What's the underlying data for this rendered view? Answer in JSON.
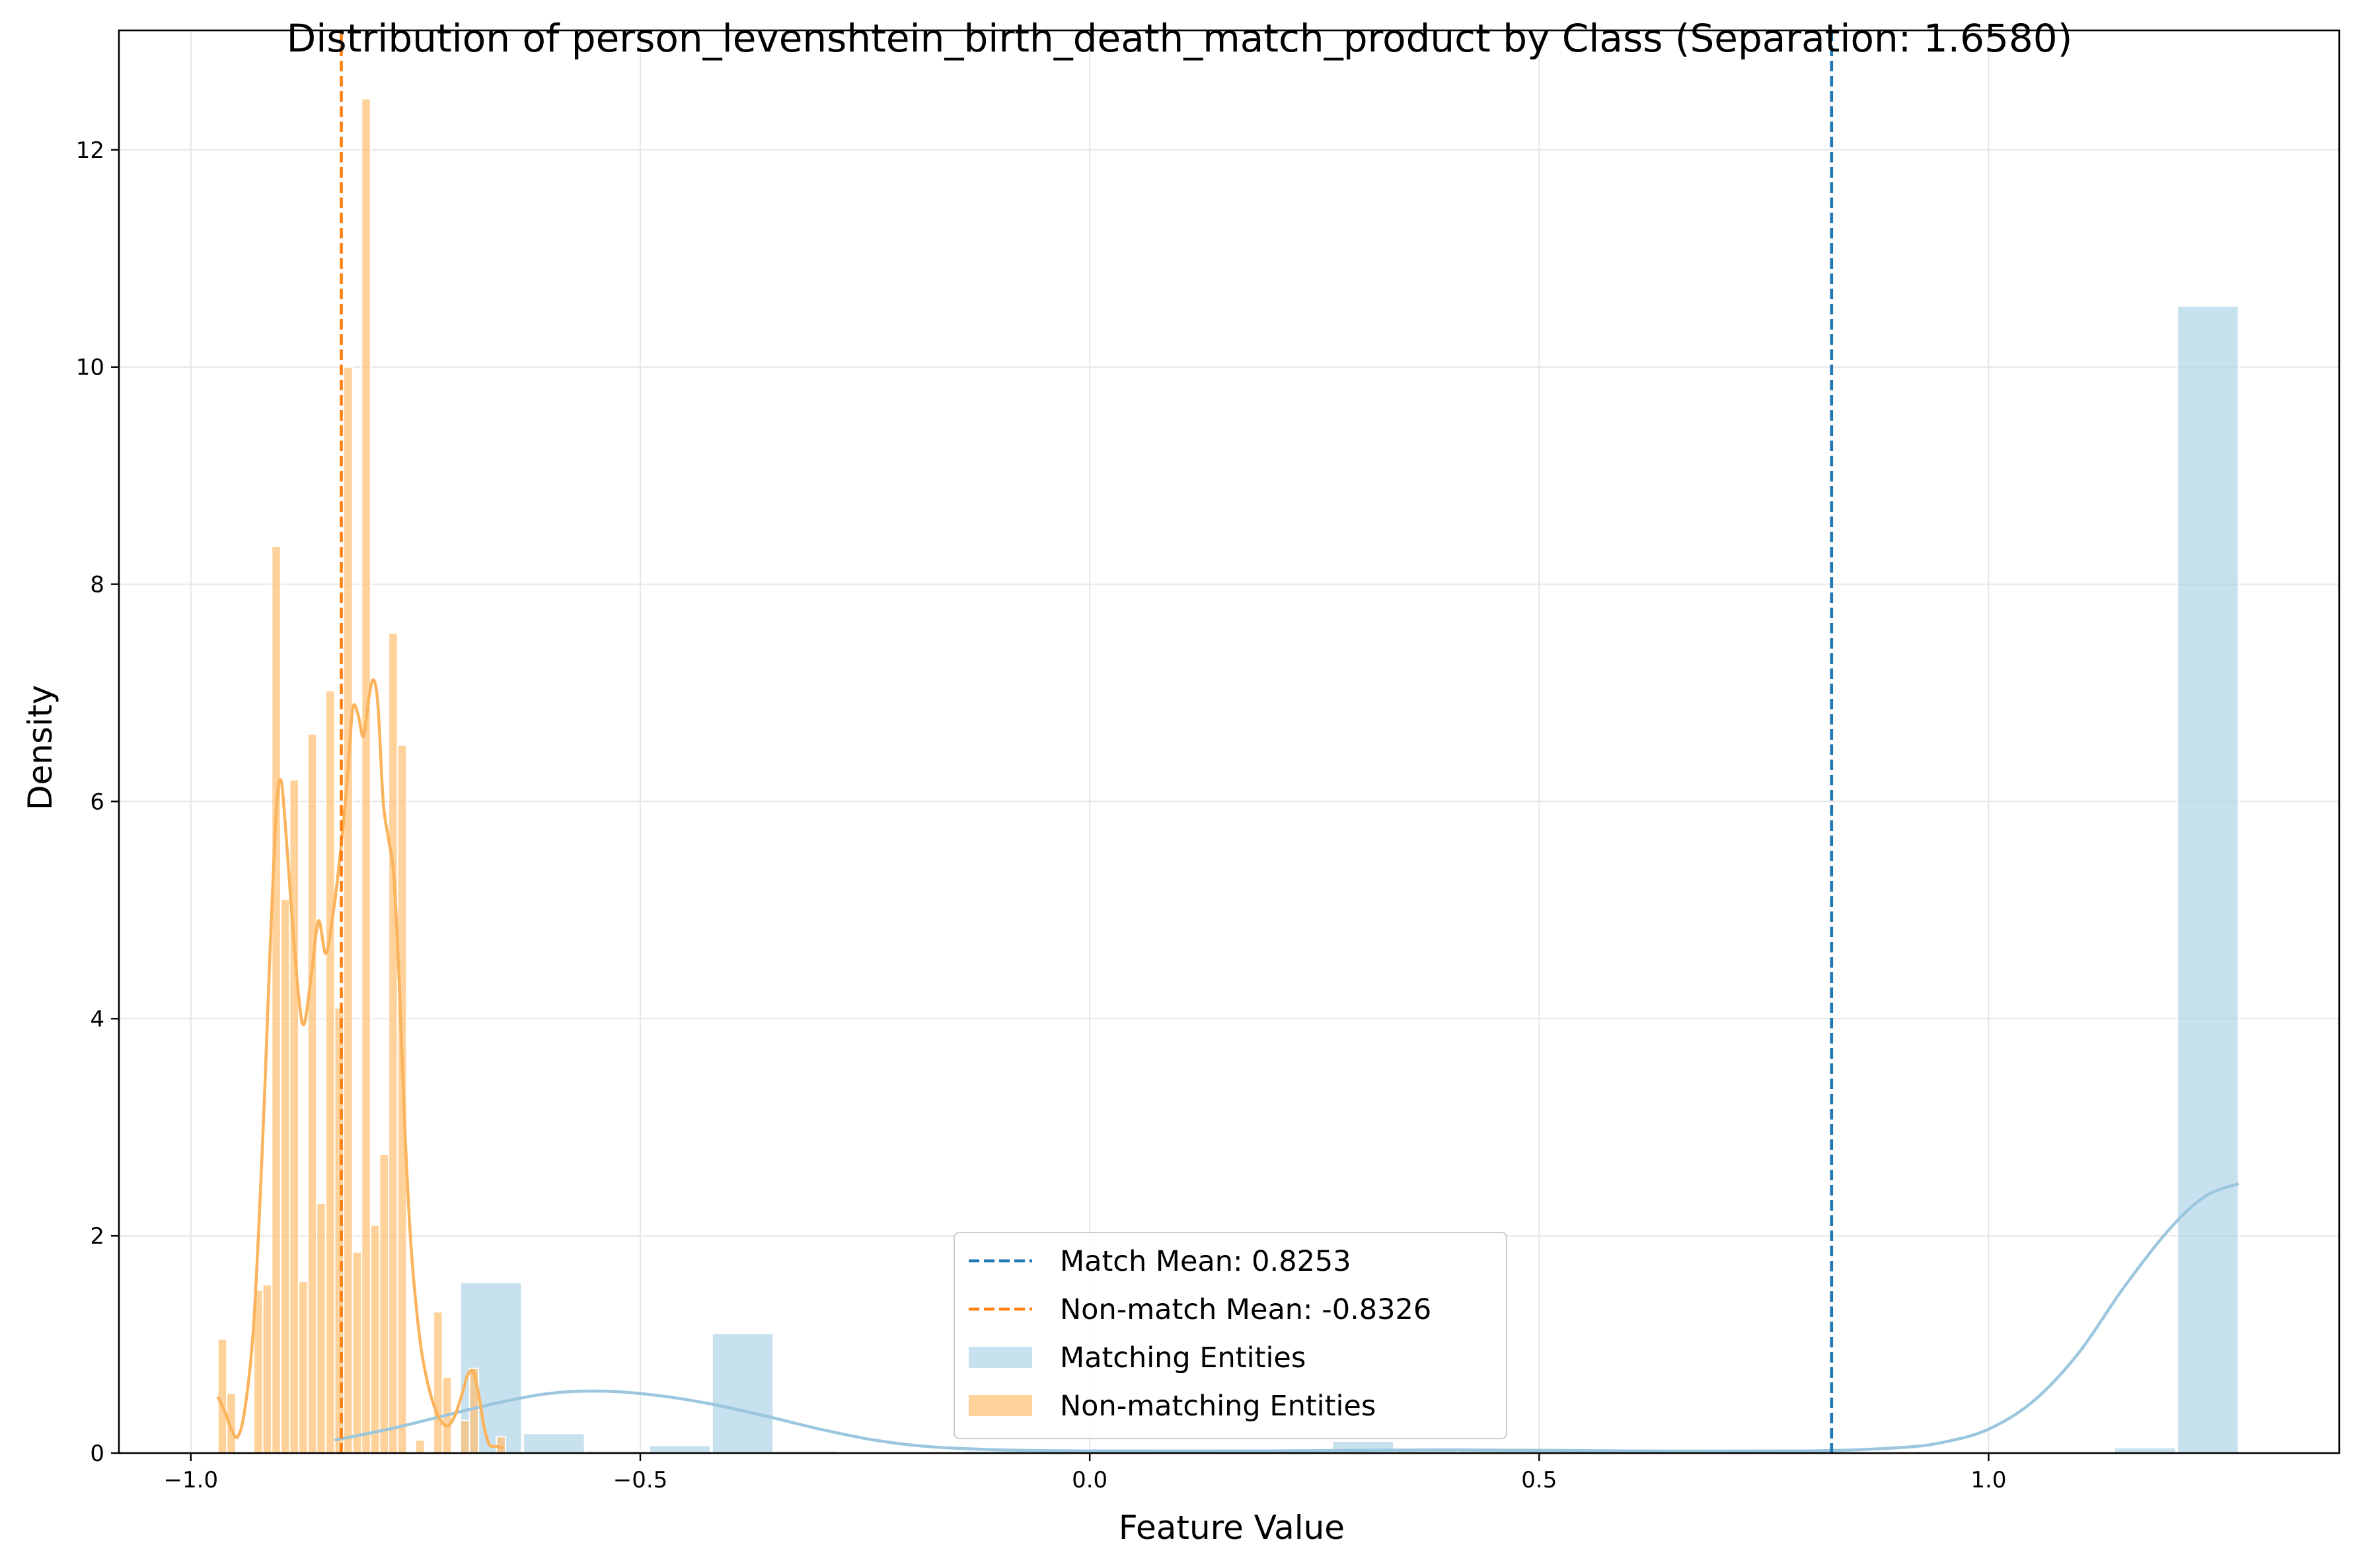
{
  "chart_data": {
    "type": "histogram",
    "title": "Distribution of person_levenshtein_birth_death_match_product by Class (Separation: 1.6580)",
    "xlabel": "Feature Value",
    "ylabel": "Density",
    "xlim": [
      -1.08,
      1.39
    ],
    "ylim": [
      0,
      13.1
    ],
    "xticks": [
      -1.0,
      -0.5,
      0.0,
      0.5,
      1.0
    ],
    "xtick_labels": [
      "−1.0",
      "−0.5",
      "0.0",
      "0.5",
      "1.0"
    ],
    "yticks": [
      0,
      2,
      4,
      6,
      8,
      10,
      12
    ],
    "ytick_labels": [
      "0",
      "2",
      "4",
      "6",
      "8",
      "10",
      "12"
    ],
    "grid": true,
    "legend_position": "lower-center",
    "colors": {
      "match_fill": "#a6cee3",
      "nonmatch_fill": "#fdbf6f",
      "match_kde": "#9ac6de",
      "nonmatch_kde": "#fbb35c",
      "match_mean": "#1f77b4",
      "nonmatch_mean": "#ff7f0e"
    },
    "series": [
      {
        "name": "Matching Entities",
        "kind": "histogram",
        "bins": [
          {
            "x0": -0.7,
            "x1": -0.632,
            "y": 1.57
          },
          {
            "x0": -0.63,
            "x1": -0.562,
            "y": 0.18
          },
          {
            "x0": -0.56,
            "x1": -0.492,
            "y": 0.02
          },
          {
            "x0": -0.49,
            "x1": -0.422,
            "y": 0.07
          },
          {
            "x0": -0.42,
            "x1": -0.352,
            "y": 1.1
          },
          {
            "x0": -0.35,
            "x1": -0.282,
            "y": 0.02
          },
          {
            "x0": -0.14,
            "x1": -0.072,
            "y": 0.02
          },
          {
            "x0": 0.27,
            "x1": 0.338,
            "y": 0.11
          },
          {
            "x0": 0.34,
            "x1": 0.408,
            "y": 0.04
          },
          {
            "x0": 0.41,
            "x1": 0.478,
            "y": 0.04
          },
          {
            "x0": 0.48,
            "x1": 0.548,
            "y": 0.03
          },
          {
            "x0": 1.14,
            "x1": 1.208,
            "y": 0.05
          },
          {
            "x0": 1.21,
            "x1": 1.278,
            "y": 10.56
          }
        ],
        "kde": [
          [
            -0.84,
            0.12
          ],
          [
            -0.78,
            0.22
          ],
          [
            -0.72,
            0.34
          ],
          [
            -0.66,
            0.46
          ],
          [
            -0.6,
            0.55
          ],
          [
            -0.54,
            0.57
          ],
          [
            -0.48,
            0.53
          ],
          [
            -0.42,
            0.45
          ],
          [
            -0.36,
            0.34
          ],
          [
            -0.3,
            0.22
          ],
          [
            -0.24,
            0.12
          ],
          [
            -0.18,
            0.06
          ],
          [
            -0.1,
            0.03
          ],
          [
            0.0,
            0.02
          ],
          [
            0.2,
            0.02
          ],
          [
            0.4,
            0.03
          ],
          [
            0.6,
            0.02
          ],
          [
            0.8,
            0.02
          ],
          [
            0.9,
            0.05
          ],
          [
            0.95,
            0.1
          ],
          [
            1.0,
            0.22
          ],
          [
            1.05,
            0.48
          ],
          [
            1.1,
            0.92
          ],
          [
            1.15,
            1.52
          ],
          [
            1.2,
            2.05
          ],
          [
            1.24,
            2.36
          ],
          [
            1.278,
            2.48
          ]
        ]
      },
      {
        "name": "Non-matching Entities",
        "kind": "histogram",
        "bins": [
          {
            "x0": -0.97,
            "x1": -0.96,
            "y": 1.05
          },
          {
            "x0": -0.96,
            "x1": -0.95,
            "y": 0.55
          },
          {
            "x0": -0.93,
            "x1": -0.92,
            "y": 1.5
          },
          {
            "x0": -0.92,
            "x1": -0.91,
            "y": 1.55
          },
          {
            "x0": -0.91,
            "x1": -0.9,
            "y": 8.35
          },
          {
            "x0": -0.9,
            "x1": -0.89,
            "y": 5.1
          },
          {
            "x0": -0.89,
            "x1": -0.88,
            "y": 6.2
          },
          {
            "x0": -0.88,
            "x1": -0.87,
            "y": 1.58
          },
          {
            "x0": -0.87,
            "x1": -0.86,
            "y": 6.62
          },
          {
            "x0": -0.86,
            "x1": -0.85,
            "y": 2.3
          },
          {
            "x0": -0.85,
            "x1": -0.84,
            "y": 7.02
          },
          {
            "x0": -0.84,
            "x1": -0.83,
            "y": 4.1
          },
          {
            "x0": -0.83,
            "x1": -0.82,
            "y": 10.0
          },
          {
            "x0": -0.82,
            "x1": -0.81,
            "y": 1.85
          },
          {
            "x0": -0.81,
            "x1": -0.8,
            "y": 12.47
          },
          {
            "x0": -0.8,
            "x1": -0.79,
            "y": 2.1
          },
          {
            "x0": -0.79,
            "x1": -0.78,
            "y": 2.75
          },
          {
            "x0": -0.78,
            "x1": -0.77,
            "y": 7.55
          },
          {
            "x0": -0.77,
            "x1": -0.76,
            "y": 6.52
          },
          {
            "x0": -0.75,
            "x1": -0.74,
            "y": 0.12
          },
          {
            "x0": -0.73,
            "x1": -0.72,
            "y": 1.3
          },
          {
            "x0": -0.72,
            "x1": -0.71,
            "y": 0.7
          },
          {
            "x0": -0.7,
            "x1": -0.69,
            "y": 0.3
          },
          {
            "x0": -0.69,
            "x1": -0.68,
            "y": 0.78
          },
          {
            "x0": -0.66,
            "x1": -0.65,
            "y": 0.15
          }
        ],
        "kde": [
          [
            -0.97,
            0.52
          ],
          [
            -0.962,
            0.38
          ],
          [
            -0.955,
            0.22
          ],
          [
            -0.948,
            0.15
          ],
          [
            -0.94,
            0.4
          ],
          [
            -0.93,
            1.2
          ],
          [
            -0.92,
            2.9
          ],
          [
            -0.912,
            4.6
          ],
          [
            -0.905,
            5.9
          ],
          [
            -0.9,
            6.2
          ],
          [
            -0.895,
            5.8
          ],
          [
            -0.888,
            5.0
          ],
          [
            -0.88,
            4.2
          ],
          [
            -0.874,
            3.95
          ],
          [
            -0.866,
            4.4
          ],
          [
            -0.858,
            4.9
          ],
          [
            -0.85,
            4.6
          ],
          [
            -0.842,
            4.95
          ],
          [
            -0.834,
            5.5
          ],
          [
            -0.826,
            6.2
          ],
          [
            -0.82,
            6.85
          ],
          [
            -0.814,
            6.8
          ],
          [
            -0.808,
            6.6
          ],
          [
            -0.802,
            6.95
          ],
          [
            -0.797,
            7.12
          ],
          [
            -0.792,
            6.9
          ],
          [
            -0.786,
            6.0
          ],
          [
            -0.78,
            5.65
          ],
          [
            -0.774,
            5.3
          ],
          [
            -0.768,
            4.3
          ],
          [
            -0.762,
            3.0
          ],
          [
            -0.755,
            1.9
          ],
          [
            -0.746,
            1.1
          ],
          [
            -0.738,
            0.7
          ],
          [
            -0.73,
            0.45
          ],
          [
            -0.722,
            0.3
          ],
          [
            -0.714,
            0.25
          ],
          [
            -0.706,
            0.35
          ],
          [
            -0.698,
            0.55
          ],
          [
            -0.692,
            0.72
          ],
          [
            -0.686,
            0.75
          ],
          [
            -0.68,
            0.55
          ],
          [
            -0.674,
            0.25
          ],
          [
            -0.668,
            0.08
          ],
          [
            -0.66,
            0.06
          ],
          [
            -0.652,
            0.05
          ]
        ]
      }
    ],
    "reference_lines": [
      {
        "name": "Match Mean: 0.8253",
        "x": 0.8253,
        "style": "dashed"
      },
      {
        "name": "Non-match Mean: -0.8326",
        "x": -0.8326,
        "style": "dashed"
      }
    ]
  }
}
